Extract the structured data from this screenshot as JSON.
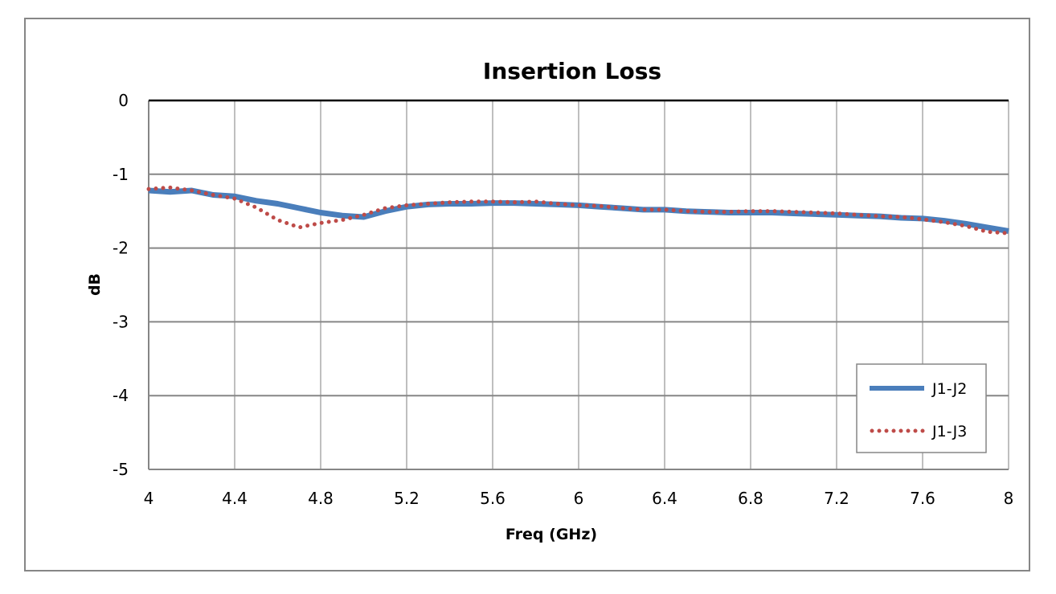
{
  "chart_data": {
    "type": "line",
    "title": "Insertion Loss",
    "xlabel": "Freq (GHz)",
    "ylabel": "dB",
    "xlim": [
      4,
      8
    ],
    "ylim": [
      -5,
      0
    ],
    "xticks": [
      "4",
      "4.4",
      "4.8",
      "5.2",
      "5.6",
      "6",
      "6.4",
      "6.8",
      "7.2",
      "7.6",
      "8"
    ],
    "yticks": [
      "0",
      "-1",
      "-2",
      "-3",
      "-4",
      "-5"
    ],
    "grid": true,
    "legend_position": "bottom-right",
    "x": [
      4.0,
      4.1,
      4.2,
      4.3,
      4.4,
      4.5,
      4.6,
      4.7,
      4.8,
      4.9,
      5.0,
      5.1,
      5.2,
      5.3,
      5.4,
      5.5,
      5.6,
      5.7,
      5.8,
      5.9,
      6.0,
      6.1,
      6.2,
      6.3,
      6.4,
      6.5,
      6.6,
      6.7,
      6.8,
      6.9,
      7.0,
      7.1,
      7.2,
      7.3,
      7.4,
      7.5,
      7.6,
      7.7,
      7.8,
      7.9,
      8.0
    ],
    "series": [
      {
        "name": "J1-J2",
        "color": "#4a7ebb",
        "style": "solid",
        "values": [
          -1.22,
          -1.24,
          -1.22,
          -1.28,
          -1.3,
          -1.36,
          -1.4,
          -1.46,
          -1.52,
          -1.56,
          -1.58,
          -1.5,
          -1.44,
          -1.41,
          -1.4,
          -1.4,
          -1.39,
          -1.39,
          -1.4,
          -1.41,
          -1.42,
          -1.44,
          -1.46,
          -1.48,
          -1.48,
          -1.5,
          -1.51,
          -1.52,
          -1.52,
          -1.52,
          -1.53,
          -1.54,
          -1.55,
          -1.56,
          -1.57,
          -1.59,
          -1.6,
          -1.63,
          -1.67,
          -1.72,
          -1.77
        ]
      },
      {
        "name": "J1-J3",
        "color": "#be4b48",
        "style": "dotted",
        "values": [
          -1.2,
          -1.18,
          -1.22,
          -1.28,
          -1.33,
          -1.45,
          -1.62,
          -1.72,
          -1.66,
          -1.62,
          -1.55,
          -1.46,
          -1.42,
          -1.4,
          -1.38,
          -1.37,
          -1.37,
          -1.38,
          -1.37,
          -1.4,
          -1.42,
          -1.43,
          -1.46,
          -1.48,
          -1.48,
          -1.5,
          -1.51,
          -1.51,
          -1.5,
          -1.5,
          -1.51,
          -1.52,
          -1.53,
          -1.55,
          -1.57,
          -1.58,
          -1.61,
          -1.65,
          -1.7,
          -1.78,
          -1.8
        ]
      }
    ]
  }
}
